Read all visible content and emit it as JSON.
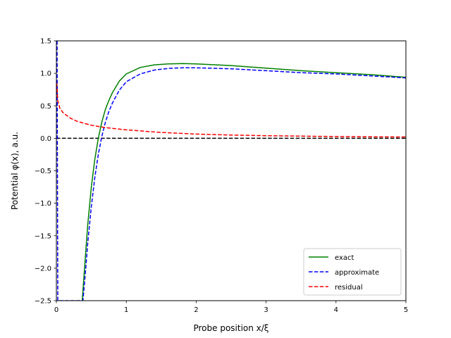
{
  "chart_data": {
    "type": "line",
    "title": "",
    "xlabel": "Probe position x/ξ",
    "ylabel": "Potential φ(x), a.u.",
    "xlim": [
      0,
      5
    ],
    "ylim": [
      -2.5,
      1.5
    ],
    "xticks": [
      "0",
      "1",
      "2",
      "3",
      "4",
      "5"
    ],
    "xtick_values": [
      0,
      1,
      2,
      3,
      4,
      5
    ],
    "yticks": [
      "−2.5",
      "−2.0",
      "−1.5",
      "−1.0",
      "−0.5",
      "0.0",
      "0.5",
      "1.0",
      "1.5"
    ],
    "ytick_values": [
      -2.5,
      -2.0,
      -1.5,
      -1.0,
      -0.5,
      0.0,
      0.5,
      1.0,
      1.5
    ],
    "grid": false,
    "legend_position": "lower-right",
    "reference_line": {
      "y": 0,
      "style": "dashed",
      "color": "#000000"
    },
    "series": [
      {
        "name": "exact",
        "color": "#008000",
        "style": "solid",
        "x": [
          0.37,
          0.42,
          0.45,
          0.5,
          0.55,
          0.6,
          0.65,
          0.7,
          0.75,
          0.8,
          0.9,
          1.0,
          1.2,
          1.4,
          1.6,
          1.8,
          2.0,
          2.5,
          3.0,
          3.5,
          4.0,
          4.5,
          5.0
        ],
        "values": [
          -2.5,
          -1.74,
          -1.32,
          -0.75,
          -0.32,
          0.0,
          0.25,
          0.44,
          0.58,
          0.7,
          0.88,
          0.99,
          1.09,
          1.13,
          1.145,
          1.15,
          1.145,
          1.12,
          1.08,
          1.04,
          1.01,
          0.98,
          0.94
        ]
      },
      {
        "name": "approximate",
        "color": "#0000ff",
        "style": "dashed",
        "x": [
          0.01,
          0.015,
          0.02,
          0.38,
          0.42,
          0.45,
          0.5,
          0.55,
          0.6,
          0.65,
          0.7,
          0.75,
          0.8,
          0.9,
          1.0,
          1.2,
          1.4,
          1.6,
          1.8,
          2.0,
          2.5,
          3.0,
          3.5,
          4.0,
          4.5,
          5.0
        ],
        "values": [
          1.5,
          -0.5,
          -2.5,
          -2.5,
          -2.0,
          -1.6,
          -1.05,
          -0.6,
          -0.25,
          0.03,
          0.24,
          0.41,
          0.54,
          0.74,
          0.87,
          0.99,
          1.05,
          1.075,
          1.085,
          1.085,
          1.07,
          1.04,
          1.01,
          0.99,
          0.96,
          0.93
        ]
      },
      {
        "name": "residual",
        "color": "#ff0000",
        "style": "dashed",
        "x": [
          0.005,
          0.02,
          0.05,
          0.1,
          0.2,
          0.3,
          0.5,
          0.7,
          1.0,
          1.5,
          2.0,
          2.5,
          3.0,
          3.5,
          4.0,
          4.5,
          5.0
        ],
        "values": [
          0.85,
          0.58,
          0.46,
          0.39,
          0.31,
          0.26,
          0.2,
          0.165,
          0.13,
          0.09,
          0.065,
          0.05,
          0.04,
          0.033,
          0.027,
          0.023,
          0.02
        ]
      }
    ]
  }
}
